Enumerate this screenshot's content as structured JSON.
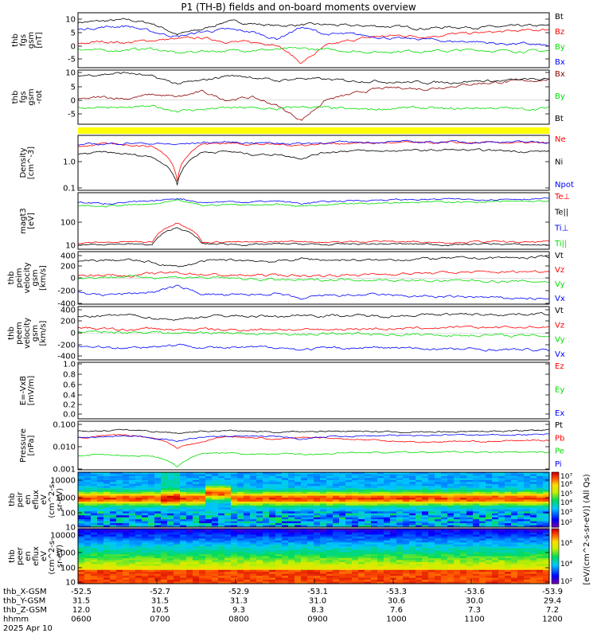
{
  "title": "P1 (TH-B) fields and on-board moments overview",
  "time_axis": {
    "rows": [
      {
        "label": "thb_X-GSM",
        "values": [
          "-52.5",
          "-52.7",
          "-52.9",
          "-53.1",
          "-53.3",
          "-53.6",
          "-53.9"
        ]
      },
      {
        "label": "thb_Y-GSM",
        "values": [
          "31.5",
          "31.5",
          "31.3",
          "31.0",
          "30.6",
          "30.0",
          "29.4"
        ]
      },
      {
        "label": "thb_Z-GSM",
        "values": [
          "12.0",
          "10.5",
          "9.3",
          "8.3",
          "7.6",
          "7.3",
          "7.2"
        ]
      },
      {
        "label": "hhmm",
        "values": [
          "0600",
          "0700",
          "0800",
          "0900",
          "1000",
          "1100",
          "1200"
        ]
      }
    ],
    "date": "2025 Apr 10"
  },
  "colorbar": {
    "ion_ticks": [
      "10⁷",
      "10⁶",
      "10⁵",
      "10⁴",
      "10³",
      "10²"
    ],
    "electron_ticks": [
      "10⁶",
      "10⁴",
      "10²"
    ],
    "label": "[eV/(cm^2-s-sr-eV)] (All Qs)"
  },
  "chart_data": [
    {
      "id": "fgs",
      "type": "line",
      "ylabel": [
        "thb",
        "fgs",
        "gsm",
        "[nT]"
      ],
      "yticks": [
        "10",
        "5",
        "0",
        "-5"
      ],
      "ylim": [
        -10,
        13
      ],
      "series": [
        {
          "name": "Bt",
          "color": "#000000",
          "values": [
            9.0,
            9.5,
            10.0,
            8.5,
            4.0,
            6.0,
            9.5,
            8.5,
            7.5,
            8.0,
            8.0,
            7.5,
            7.5,
            7.0,
            6.5,
            7.0,
            7.0,
            7.0,
            7.5,
            7.5
          ]
        },
        {
          "name": "Bz",
          "color": "#ff0000",
          "values": [
            0.0,
            1.0,
            0.5,
            1.5,
            2.0,
            2.5,
            1.0,
            0.5,
            0.0,
            -8.0,
            -1.0,
            1.5,
            3.0,
            3.5,
            3.0,
            4.0,
            4.5,
            5.0,
            5.5,
            6.0
          ]
        },
        {
          "name": "By",
          "color": "#00dd00",
          "values": [
            -2.0,
            -3.0,
            -2.5,
            -2.0,
            -4.0,
            -3.0,
            -3.0,
            -2.5,
            -2.5,
            -2.0,
            -2.5,
            -3.0,
            -3.5,
            -3.0,
            -3.0,
            -3.0,
            -2.5,
            -3.0,
            -3.0,
            -3.0
          ]
        },
        {
          "name": "Bx",
          "color": "#0000ff",
          "values": [
            6.0,
            7.0,
            7.5,
            5.0,
            3.0,
            5.0,
            6.0,
            5.0,
            2.0,
            7.0,
            4.0,
            4.0,
            3.0,
            2.0,
            2.0,
            1.0,
            1.0,
            0.0,
            0.0,
            -1.0
          ]
        }
      ]
    },
    {
      "id": "fgs_gsm_rot",
      "type": "line",
      "ylabel": [
        "thb",
        "fgs",
        "gsm",
        "-rot"
      ],
      "yticks": [
        "10",
        "5",
        "0",
        "-5"
      ],
      "ylim": [
        -9,
        11
      ],
      "series": [
        {
          "name": "Bx",
          "color": "#8b0000",
          "values": [
            0.0,
            1.0,
            0.5,
            2.0,
            1.0,
            3.0,
            0.0,
            1.0,
            -2.0,
            -7.5,
            0.0,
            2.0,
            4.0,
            4.5,
            4.0,
            5.0,
            6.0,
            6.5,
            7.0,
            7.5
          ]
        },
        {
          "name": "By",
          "color": "#00dd00",
          "values": [
            -3.0,
            -2.5,
            -3.0,
            -2.5,
            -4.0,
            -3.5,
            -3.0,
            -3.0,
            -3.5,
            -2.5,
            -3.0,
            -3.5,
            -3.5,
            -3.0,
            -3.0,
            -3.5,
            -3.0,
            -3.0,
            -3.5,
            -3.0
          ]
        },
        {
          "name": "Bt",
          "color": "#000000",
          "values": [
            9.0,
            9.5,
            10.0,
            8.5,
            6.0,
            7.0,
            9.0,
            8.5,
            7.0,
            8.0,
            7.5,
            7.0,
            7.0,
            6.5,
            6.5,
            6.5,
            7.0,
            7.0,
            7.5,
            7.5
          ]
        }
      ]
    },
    {
      "id": "density",
      "type": "line",
      "scale": "log",
      "ylabel": [
        "Density",
        "[cm^-3]"
      ],
      "yticks": [
        "1.0",
        "0.1"
      ],
      "ylim": [
        0.08,
        5.0
      ],
      "series": [
        {
          "name": "Ne",
          "color": "#ff0000",
          "values": [
            2.2,
            2.6,
            2.5,
            2.2,
            0.15,
            2.6,
            2.8,
            2.6,
            2.5,
            2.4,
            2.7,
            2.8,
            2.8,
            2.9,
            2.8,
            2.9,
            2.8,
            2.9,
            2.8,
            2.8
          ]
        },
        {
          "name": "Ni",
          "color": "#000000",
          "values": [
            1.2,
            1.4,
            1.2,
            1.0,
            0.12,
            1.4,
            1.5,
            1.2,
            1.2,
            0.9,
            1.4,
            1.6,
            1.5,
            1.6,
            1.6,
            1.7,
            1.6,
            1.6,
            1.5,
            1.5
          ]
        },
        {
          "name": "Npot",
          "color": "#0000ff",
          "values": [
            2.5,
            2.6,
            2.8,
            2.7,
            2.5,
            2.9,
            3.0,
            2.9,
            2.8,
            2.7,
            2.9,
            3.0,
            3.0,
            3.1,
            3.0,
            3.1,
            3.0,
            3.1,
            3.0,
            3.0
          ]
        }
      ]
    },
    {
      "id": "temperature",
      "type": "line",
      "scale": "log",
      "ylabel": [
        "magt3",
        "[eV]"
      ],
      "yticks": [
        "100",
        "10"
      ],
      "ylim": [
        8,
        1500
      ],
      "series": [
        {
          "name": "Te⊥",
          "color": "#ff0000",
          "values": [
            14,
            15,
            16,
            15,
            95,
            15,
            16,
            15,
            16,
            17,
            15,
            16,
            17,
            16,
            16,
            15,
            16,
            16,
            15,
            16
          ]
        },
        {
          "name": "Te||",
          "color": "#000000",
          "values": [
            12,
            13,
            13,
            12,
            60,
            13,
            13,
            12,
            13,
            13,
            12,
            13,
            13,
            13,
            13,
            12,
            13,
            13,
            12,
            12
          ]
        },
        {
          "name": "Ti⊥",
          "color": "#0000ff",
          "values": [
            600,
            550,
            620,
            650,
            900,
            600,
            650,
            640,
            700,
            550,
            650,
            720,
            760,
            780,
            800,
            820,
            800,
            820,
            850,
            860
          ]
        },
        {
          "name": "Ti||",
          "color": "#00dd00",
          "values": [
            450,
            420,
            480,
            500,
            700,
            460,
            500,
            490,
            520,
            420,
            500,
            560,
            600,
            620,
            630,
            650,
            630,
            650,
            670,
            680
          ]
        }
      ]
    },
    {
      "id": "peim_velocity",
      "type": "line",
      "ylabel": [
        "thb",
        "peim",
        "velocity",
        "gsm",
        "[km/s]"
      ],
      "yticks": [
        "400",
        "200",
        "0",
        "-200",
        "-400"
      ],
      "ylim": [
        -470,
        480
      ],
      "series": [
        {
          "name": "Vt",
          "color": "#000000",
          "values": [
            300,
            320,
            330,
            280,
            200,
            300,
            330,
            320,
            300,
            350,
            330,
            330,
            320,
            340,
            350,
            360,
            360,
            370,
            370,
            380
          ]
        },
        {
          "name": "Vz",
          "color": "#ff0000",
          "values": [
            50,
            60,
            40,
            80,
            100,
            70,
            50,
            50,
            60,
            40,
            50,
            60,
            70,
            80,
            90,
            100,
            110,
            110,
            120,
            130
          ]
        },
        {
          "name": "Vy",
          "color": "#00dd00",
          "values": [
            0,
            20,
            30,
            20,
            20,
            10,
            0,
            -20,
            -30,
            -40,
            -30,
            -20,
            -30,
            -40,
            -50,
            -50,
            -40,
            -60,
            -60,
            -60
          ]
        },
        {
          "name": "Vx",
          "color": "#0000ff",
          "values": [
            -260,
            -300,
            -280,
            -250,
            -150,
            -280,
            -310,
            -300,
            -280,
            -380,
            -310,
            -310,
            -300,
            -320,
            -330,
            -340,
            -340,
            -360,
            -360,
            -380
          ]
        }
      ]
    },
    {
      "id": "peem_velocity",
      "type": "line",
      "ylabel": [
        "thb",
        "peem",
        "velocity",
        "gsm",
        "[km/s]"
      ],
      "yticks": [
        "400",
        "200",
        "0",
        "-200",
        "-400"
      ],
      "ylim": [
        -470,
        480
      ],
      "series": [
        {
          "name": "Vt",
          "color": "#000000",
          "values": [
            300,
            310,
            330,
            280,
            250,
            300,
            320,
            310,
            300,
            330,
            320,
            320,
            310,
            320,
            330,
            340,
            340,
            340,
            350,
            350
          ]
        },
        {
          "name": "Vz",
          "color": "#ff0000",
          "values": [
            100,
            80,
            60,
            90,
            60,
            80,
            60,
            70,
            80,
            60,
            70,
            80,
            90,
            80,
            100,
            100,
            110,
            110,
            110,
            120
          ]
        },
        {
          "name": "Vy",
          "color": "#00dd00",
          "values": [
            20,
            30,
            20,
            30,
            10,
            20,
            10,
            0,
            -10,
            -20,
            -10,
            0,
            -10,
            -20,
            -20,
            -30,
            -30,
            -30,
            -40,
            -40
          ]
        },
        {
          "name": "Vx",
          "color": "#0000ff",
          "values": [
            -220,
            -240,
            -250,
            -230,
            -200,
            -240,
            -260,
            -250,
            -240,
            -290,
            -260,
            -260,
            -250,
            -260,
            -270,
            -280,
            -280,
            -290,
            -290,
            -300
          ]
        }
      ]
    },
    {
      "id": "efield",
      "type": "line",
      "ylabel": [
        "E=-VxB",
        "[mV/m]"
      ],
      "yticks": [
        "1.0",
        "0.8",
        "0.6",
        "0.4",
        "0.2",
        "0.0"
      ],
      "ylim": [
        -0.08,
        1.05
      ],
      "series": [
        {
          "name": "Ez",
          "color": "#ff0000",
          "values": []
        },
        {
          "name": "Ey",
          "color": "#00dd00",
          "values": []
        },
        {
          "name": "Ex",
          "color": "#0000ff",
          "values": []
        }
      ]
    },
    {
      "id": "pressure",
      "type": "line",
      "scale": "log",
      "ylabel": [
        "Pressure",
        "[nPa]"
      ],
      "yticks": [
        "0.100",
        "0.010",
        "0.001"
      ],
      "ylim": [
        0.0009,
        0.18
      ],
      "series": [
        {
          "name": "Pt",
          "color": "#000000",
          "values": [
            0.06,
            0.065,
            0.07,
            0.06,
            0.05,
            0.06,
            0.065,
            0.06,
            0.055,
            0.06,
            0.06,
            0.062,
            0.058,
            0.055,
            0.055,
            0.058,
            0.06,
            0.062,
            0.065,
            0.07
          ]
        },
        {
          "name": "Pb",
          "color": "#ff0000",
          "values": [
            0.03,
            0.035,
            0.04,
            0.03,
            0.01,
            0.018,
            0.035,
            0.03,
            0.025,
            0.03,
            0.03,
            0.025,
            0.023,
            0.02,
            0.018,
            0.02,
            0.02,
            0.02,
            0.022,
            0.023
          ]
        },
        {
          "name": "Pe",
          "color": "#00dd00",
          "values": [
            0.004,
            0.005,
            0.004,
            0.004,
            0.0012,
            0.005,
            0.006,
            0.005,
            0.005,
            0.005,
            0.005,
            0.006,
            0.006,
            0.006,
            0.006,
            0.0065,
            0.006,
            0.006,
            0.006,
            0.006
          ]
        },
        {
          "name": "Pi",
          "color": "#0000ff",
          "values": [
            0.03,
            0.032,
            0.034,
            0.03,
            0.02,
            0.032,
            0.035,
            0.034,
            0.035,
            0.025,
            0.033,
            0.036,
            0.037,
            0.038,
            0.04,
            0.041,
            0.04,
            0.041,
            0.042,
            0.043
          ]
        }
      ]
    },
    {
      "id": "ion_eflux",
      "type": "heatmap",
      "scale": "log",
      "ylabel": [
        "thb",
        "peir",
        "en",
        "eflux",
        "eV",
        "(cm^2-s-",
        "sr-eV)"
      ],
      "yticks": [
        "10000",
        "1000",
        "100",
        "10"
      ],
      "ylim": [
        5,
        25000
      ],
      "colorbar_range": [
        "10^2",
        "10^7"
      ]
    },
    {
      "id": "electron_eflux",
      "type": "heatmap",
      "scale": "log",
      "ylabel": [
        "thb",
        "peer",
        "en",
        "eflux",
        "eV",
        "(cm^2-s-",
        "sr-eV)"
      ],
      "yticks": [
        "10000",
        "1000",
        "100",
        "10"
      ],
      "ylim": [
        5,
        25000
      ],
      "colorbar_range": [
        "10^1",
        "10^7"
      ]
    }
  ]
}
